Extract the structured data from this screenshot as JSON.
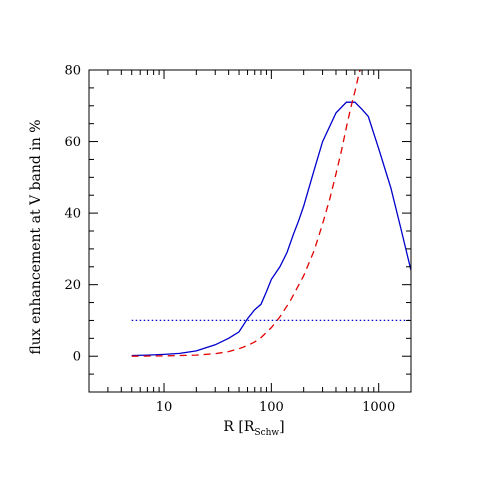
{
  "chart_data": {
    "type": "line",
    "xlabel": "R [R",
    "xlabel_sub": "Schw",
    "xlabel_close": "]",
    "ylabel": "flux enhancement at V band in %",
    "xscale": "log",
    "xlim": [
      2,
      2000
    ],
    "ylim": [
      -10,
      80
    ],
    "x_tick_labels": [
      {
        "value": 10,
        "label": "10"
      },
      {
        "value": 100,
        "label": "100"
      },
      {
        "value": 1000,
        "label": "1000"
      }
    ],
    "y_tick_labels": [
      {
        "value": 0,
        "label": "0"
      },
      {
        "value": 20,
        "label": "20"
      },
      {
        "value": 40,
        "label": "40"
      },
      {
        "value": 60,
        "label": "60"
      },
      {
        "value": 80,
        "label": "80"
      }
    ],
    "series": [
      {
        "style": "solid",
        "color": "#0000cc",
        "x": [
          5,
          7,
          10,
          14,
          20,
          30,
          40,
          50,
          60,
          70,
          80,
          90,
          100,
          120,
          140,
          160,
          180,
          200,
          250,
          300,
          400,
          500,
          600,
          700,
          800,
          1000,
          1300,
          1600,
          2000
        ],
        "y": [
          0.2,
          0.3,
          0.5,
          0.8,
          1.5,
          3.2,
          5,
          6.8,
          10.5,
          13,
          14.5,
          18,
          21.5,
          25,
          29,
          34,
          38,
          42,
          52,
          60,
          68,
          71,
          71,
          69,
          67,
          58,
          47,
          36,
          24
        ]
      },
      {
        "style": "dashed",
        "color": "#e00000",
        "x": [
          5,
          10,
          20,
          30,
          40,
          50,
          60,
          70,
          80,
          100,
          120,
          150,
          200,
          250,
          300,
          350,
          400,
          450,
          500,
          550,
          600,
          650,
          700
        ],
        "y": [
          0,
          0.1,
          0.3,
          0.7,
          1.3,
          2.1,
          3,
          4,
          5.2,
          8,
          11,
          15.5,
          22.5,
          29.5,
          37,
          44,
          51,
          57.5,
          64,
          69.5,
          74,
          78.5,
          82
        ]
      },
      {
        "style": "dotted",
        "color": "#0000cc",
        "x": [
          5,
          2000
        ],
        "y": [
          10,
          10
        ]
      }
    ]
  }
}
